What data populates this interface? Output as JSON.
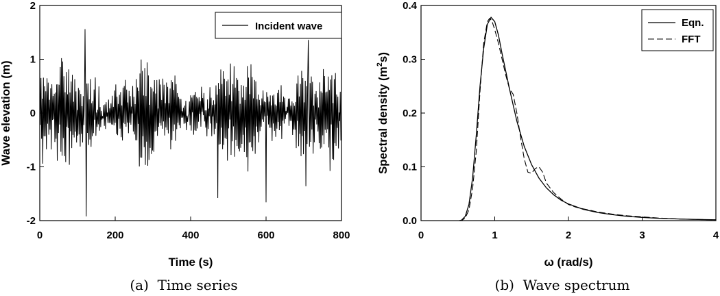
{
  "chart_data": [
    {
      "type": "line",
      "caption": "(a)  Time series",
      "xlabel": "Time (s)",
      "ylabel": "Wave elevation (m)",
      "xlim": [
        0,
        800
      ],
      "ylim": [
        -2,
        2
      ],
      "xticks": [
        "0",
        "200",
        "400",
        "600",
        "800"
      ],
      "yticks": [
        "-2",
        "-1",
        "0",
        "1",
        "2"
      ],
      "legend": {
        "position": "top-right",
        "entries": [
          "Incident wave"
        ]
      },
      "series": [
        {
          "name": "Incident wave",
          "sample_interval_s": 1.6,
          "sample_count": 500,
          "y_range_observed": [
            -1.92,
            1.56
          ],
          "extremes": [
            {
              "x": 120,
              "y": 1.56
            },
            {
              "x": 123,
              "y": -1.92
            },
            {
              "x": 472,
              "y": -1.58
            },
            {
              "x": 600,
              "y": -1.66
            },
            {
              "x": 706,
              "y": -1.36
            },
            {
              "x": 712,
              "y": 1.36
            }
          ]
        }
      ]
    },
    {
      "type": "line",
      "caption": "(b)  Wave spectrum",
      "xlabel": "ω (rad/s)",
      "ylabel_parts": [
        "Spectral density (m",
        "2",
        "s)"
      ],
      "xlim": [
        0,
        4
      ],
      "ylim": [
        0,
        0.4
      ],
      "xticks": [
        "0",
        "1",
        "2",
        "3",
        "4"
      ],
      "yticks": [
        "0.0",
        "0.1",
        "0.2",
        "0.3",
        "0.4"
      ],
      "legend": {
        "position": "top-right",
        "entries": [
          "Eqn.",
          "FFT"
        ]
      },
      "series": [
        {
          "name": "Eqn.",
          "style": "solid",
          "x": [
            0.52,
            0.55,
            0.6,
            0.65,
            0.7,
            0.75,
            0.8,
            0.85,
            0.9,
            0.95,
            1.0,
            1.05,
            1.1,
            1.2,
            1.3,
            1.4,
            1.5,
            1.6,
            1.7,
            1.8,
            1.9,
            2.0,
            2.2,
            2.4,
            2.6,
            2.8,
            3.0,
            3.2,
            3.5,
            3.8,
            4.0
          ],
          "y": [
            0.0,
            0.001,
            0.008,
            0.03,
            0.08,
            0.16,
            0.25,
            0.32,
            0.365,
            0.378,
            0.37,
            0.345,
            0.31,
            0.245,
            0.185,
            0.138,
            0.104,
            0.079,
            0.061,
            0.048,
            0.038,
            0.031,
            0.021,
            0.015,
            0.011,
            0.008,
            0.006,
            0.0045,
            0.003,
            0.002,
            0.0015
          ]
        },
        {
          "name": "FFT",
          "style": "dashed",
          "x": [
            0.52,
            0.55,
            0.6,
            0.65,
            0.7,
            0.75,
            0.8,
            0.85,
            0.9,
            0.93,
            0.96,
            1.0,
            1.05,
            1.1,
            1.15,
            1.2,
            1.25,
            1.3,
            1.35,
            1.4,
            1.45,
            1.5,
            1.55,
            1.6,
            1.65,
            1.7,
            1.8,
            1.9,
            2.0,
            2.1,
            2.2,
            2.3,
            2.4,
            2.6,
            2.8,
            3.0,
            3.2,
            3.5,
            3.8,
            4.0
          ],
          "y": [
            0.0,
            0.0,
            0.005,
            0.02,
            0.06,
            0.13,
            0.24,
            0.33,
            0.37,
            0.376,
            0.372,
            0.355,
            0.33,
            0.3,
            0.27,
            0.245,
            0.235,
            0.2,
            0.155,
            0.115,
            0.09,
            0.088,
            0.097,
            0.1,
            0.09,
            0.07,
            0.052,
            0.04,
            0.03,
            0.025,
            0.022,
            0.019,
            0.016,
            0.012,
            0.009,
            0.007,
            0.005,
            0.003,
            0.002,
            0.0015
          ]
        }
      ]
    }
  ]
}
